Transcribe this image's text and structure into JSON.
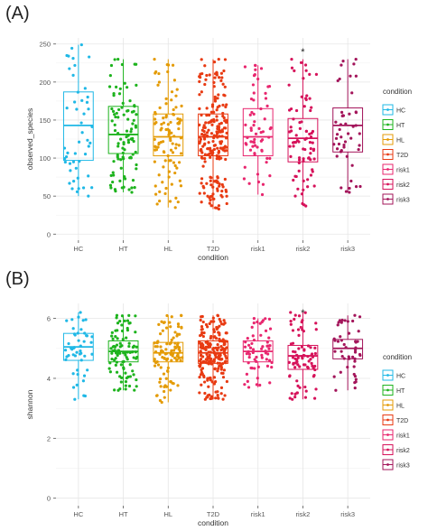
{
  "figure": {
    "panel_labels": [
      "(A)",
      "(B)"
    ]
  },
  "colors": {
    "HC": "#1fb8e6",
    "HT": "#1db31d",
    "HL": "#e49b05",
    "T2D": "#e83a12",
    "risk1": "#e8266e",
    "risk2": "#d6125a",
    "risk3": "#a3145a"
  },
  "chart_data": [
    {
      "type": "box",
      "xlabel": "condition",
      "ylabel": "observed_species",
      "ylim": [
        -8,
        258
      ],
      "yticks": [
        "0",
        "50",
        "100",
        "150",
        "200",
        "250"
      ],
      "ytick_values": [
        0,
        50,
        100,
        150,
        200,
        250
      ],
      "categories": [
        "HC",
        "HT",
        "HL",
        "T2D",
        "risk1",
        "risk2",
        "risk3"
      ],
      "legend": {
        "title": "condition",
        "entries": [
          "HC",
          "HT",
          "HL",
          "T2D",
          "risk1",
          "risk2",
          "risk3"
        ],
        "position": "right"
      },
      "annotation": {
        "text": "*",
        "category": "risk2",
        "y": 240
      },
      "grid": true,
      "series": [
        {
          "name": "HC",
          "min": 50,
          "q1": 97,
          "median": 143,
          "q3": 187,
          "max": 249,
          "n": 48
        },
        {
          "name": "HT",
          "min": 55,
          "q1": 106,
          "median": 131,
          "q3": 168,
          "max": 230,
          "n": 95
        },
        {
          "name": "HL",
          "min": 35,
          "q1": 103,
          "median": 128,
          "q3": 158,
          "max": 230,
          "n": 105
        },
        {
          "name": "T2D",
          "min": 33,
          "q1": 103,
          "median": 128,
          "q3": 158,
          "max": 230,
          "n": 215
        },
        {
          "name": "risk1",
          "min": 52,
          "q1": 103,
          "median": 128,
          "q3": 165,
          "max": 222,
          "n": 62
        },
        {
          "name": "risk2",
          "min": 37,
          "q1": 95,
          "median": 126,
          "q3": 152,
          "max": 230,
          "n": 80
        },
        {
          "name": "risk3",
          "min": 55,
          "q1": 108,
          "median": 143,
          "q3": 166,
          "max": 230,
          "n": 48
        }
      ]
    },
    {
      "type": "box",
      "xlabel": "condition",
      "ylabel": "shannon",
      "ylim": [
        -0.25,
        6.5
      ],
      "yticks": [
        "0",
        "2",
        "4",
        "6"
      ],
      "ytick_values": [
        0,
        2,
        4,
        6
      ],
      "categories": [
        "HC",
        "HT",
        "HL",
        "T2D",
        "risk1",
        "risk2",
        "risk3"
      ],
      "legend": {
        "title": "condition",
        "entries": [
          "HC",
          "HT",
          "HL",
          "T2D",
          "risk1",
          "risk2",
          "risk3"
        ],
        "position": "right"
      },
      "annotation": {
        "text": "*",
        "category": "risk2",
        "y": 6.2
      },
      "grid": true,
      "series": [
        {
          "name": "HC",
          "min": 3.3,
          "q1": 4.6,
          "median": 5.05,
          "q3": 5.5,
          "max": 6.2,
          "n": 48
        },
        {
          "name": "HT",
          "min": 3.6,
          "q1": 4.55,
          "median": 4.9,
          "q3": 5.25,
          "max": 6.1,
          "n": 95
        },
        {
          "name": "HL",
          "min": 3.2,
          "q1": 4.55,
          "median": 4.85,
          "q3": 5.2,
          "max": 6.1,
          "n": 105
        },
        {
          "name": "T2D",
          "min": 3.3,
          "q1": 4.5,
          "median": 4.85,
          "q3": 5.25,
          "max": 6.1,
          "n": 215
        },
        {
          "name": "risk1",
          "min": 3.7,
          "q1": 4.55,
          "median": 4.9,
          "q3": 5.25,
          "max": 6.0,
          "n": 62
        },
        {
          "name": "risk2",
          "min": 3.3,
          "q1": 4.3,
          "median": 4.75,
          "q3": 5.1,
          "max": 6.2,
          "n": 80
        },
        {
          "name": "risk3",
          "min": 3.6,
          "q1": 4.65,
          "median": 5.0,
          "q3": 5.3,
          "max": 6.1,
          "n": 48
        }
      ]
    }
  ]
}
